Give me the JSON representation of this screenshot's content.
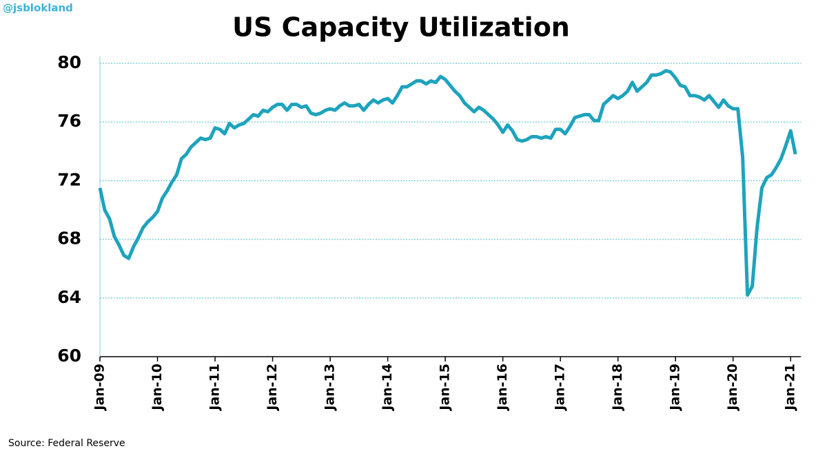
{
  "chart_data": {
    "type": "line",
    "title": "US Capacity Utilization",
    "watermark": "@jsblokland",
    "source": "Source: Federal Reserve",
    "categories": [
      "Jan-09",
      null,
      null,
      null,
      null,
      null,
      null,
      null,
      null,
      null,
      null,
      null,
      "Jan-10",
      null,
      null,
      null,
      null,
      null,
      null,
      null,
      null,
      null,
      null,
      null,
      "Jan-11",
      null,
      null,
      null,
      null,
      null,
      null,
      null,
      null,
      null,
      null,
      null,
      "Jan-12",
      null,
      null,
      null,
      null,
      null,
      null,
      null,
      null,
      null,
      null,
      null,
      "Jan-13",
      null,
      null,
      null,
      null,
      null,
      null,
      null,
      null,
      null,
      null,
      null,
      "Jan-14",
      null,
      null,
      null,
      null,
      null,
      null,
      null,
      null,
      null,
      null,
      null,
      "Jan-15",
      null,
      null,
      null,
      null,
      null,
      null,
      null,
      null,
      null,
      null,
      null,
      "Jan-16",
      null,
      null,
      null,
      null,
      null,
      null,
      null,
      null,
      null,
      null,
      null,
      "Jan-17",
      null,
      null,
      null,
      null,
      null,
      null,
      null,
      null,
      null,
      null,
      null,
      "Jan-18",
      null,
      null,
      null,
      null,
      null,
      null,
      null,
      null,
      null,
      null,
      null,
      "Jan-19",
      null,
      null,
      null,
      null,
      null,
      null,
      null,
      null,
      null,
      null,
      null,
      "Jan-20",
      null,
      null,
      null,
      null,
      null,
      null,
      null,
      null,
      null,
      null,
      null,
      "Jan-21",
      null
    ],
    "series": [
      {
        "name": "Capacity Utilization",
        "color": "#1ea3bd",
        "values": [
          71.5,
          70.0,
          69.4,
          68.2,
          67.6,
          66.9,
          66.7,
          67.5,
          68.1,
          68.8,
          69.2,
          69.5,
          69.9,
          70.8,
          71.3,
          71.9,
          72.4,
          73.5,
          73.8,
          74.3,
          74.6,
          74.9,
          74.8,
          74.9,
          75.6,
          75.5,
          75.2,
          75.9,
          75.6,
          75.8,
          75.9,
          76.2,
          76.5,
          76.4,
          76.8,
          76.7,
          77.0,
          77.2,
          77.2,
          76.8,
          77.2,
          77.2,
          77.0,
          77.1,
          76.6,
          76.5,
          76.6,
          76.8,
          76.9,
          76.8,
          77.1,
          77.3,
          77.1,
          77.1,
          77.2,
          76.8,
          77.2,
          77.5,
          77.3,
          77.5,
          77.6,
          77.3,
          77.8,
          78.4,
          78.4,
          78.6,
          78.8,
          78.8,
          78.6,
          78.8,
          78.7,
          79.1,
          78.9,
          78.5,
          78.1,
          77.8,
          77.3,
          77.0,
          76.7,
          77.0,
          76.8,
          76.5,
          76.2,
          75.8,
          75.3,
          75.8,
          75.4,
          74.8,
          74.7,
          74.8,
          75.0,
          75.0,
          74.9,
          75.0,
          74.9,
          75.5,
          75.5,
          75.2,
          75.7,
          76.3,
          76.4,
          76.5,
          76.5,
          76.1,
          76.1,
          77.2,
          77.5,
          77.8,
          77.6,
          77.8,
          78.1,
          78.7,
          78.1,
          78.4,
          78.7,
          79.2,
          79.2,
          79.3,
          79.5,
          79.4,
          79.0,
          78.5,
          78.4,
          77.8,
          77.8,
          77.7,
          77.5,
          77.8,
          77.4,
          77.0,
          77.5,
          77.1,
          76.9,
          76.9,
          73.6,
          64.2,
          64.8,
          68.8,
          71.5,
          72.2,
          72.4,
          72.9,
          73.5,
          74.4,
          75.4,
          73.8
        ]
      }
    ],
    "ylim": [
      60,
      80
    ],
    "yticks": [
      60,
      64,
      68,
      72,
      76,
      80
    ],
    "grid": true
  }
}
